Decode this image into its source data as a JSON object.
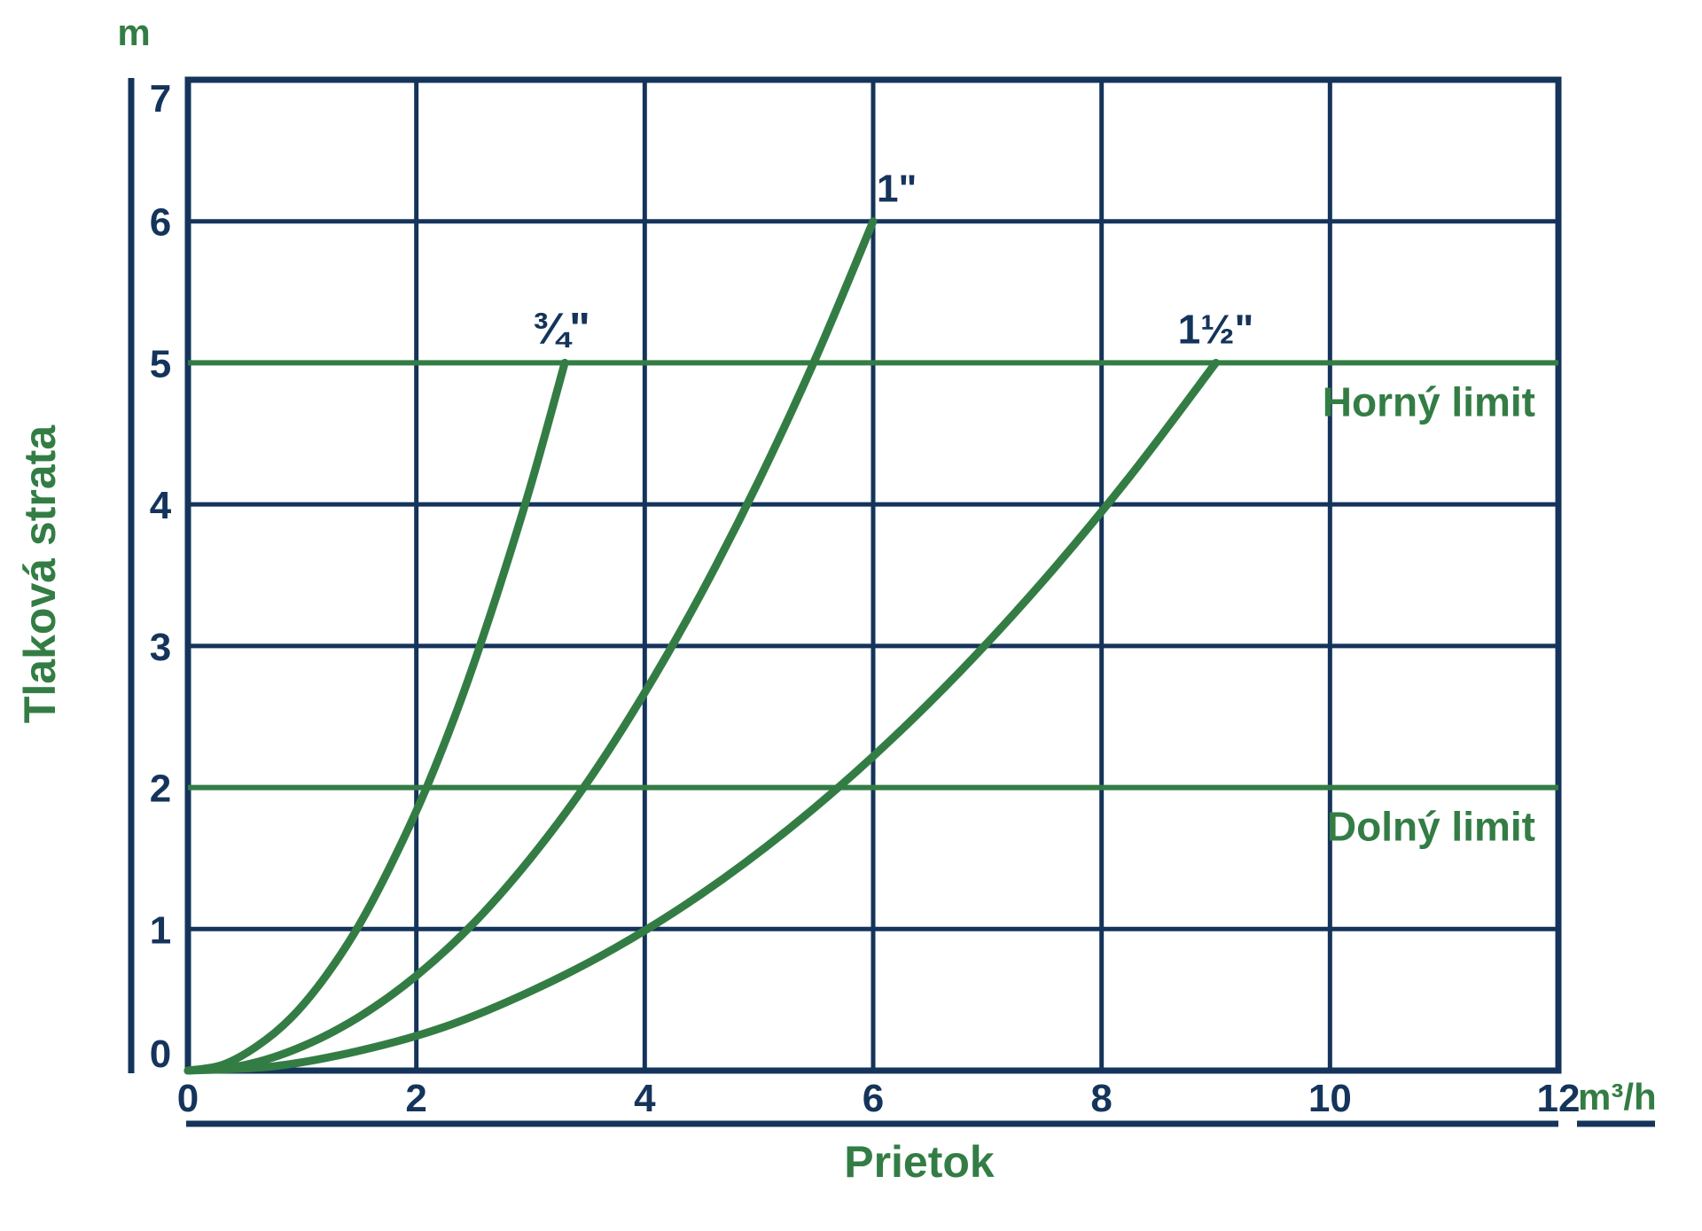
{
  "page": {
    "background": "#ffffff"
  },
  "chart_data": {
    "type": "line",
    "title": "",
    "xlabel": "Prietok",
    "x_unit": "m³/h",
    "ylabel": "Tlaková strata",
    "y_unit": "m",
    "xlim": [
      0,
      12
    ],
    "ylim": [
      0,
      7
    ],
    "x_ticks": [
      0,
      2,
      4,
      6,
      8,
      10,
      12
    ],
    "y_ticks": [
      0,
      1,
      2,
      3,
      4,
      5,
      6,
      7
    ],
    "grid": true,
    "legend_position": "inline-curve-labels",
    "series": [
      {
        "name": "¾\"",
        "x": [
          0,
          0.3,
          0.6,
          0.9,
          1.2,
          1.5,
          1.8,
          2.1,
          2.4,
          2.7,
          3.0,
          3.3
        ],
        "y": [
          0,
          0.04,
          0.17,
          0.37,
          0.66,
          1.03,
          1.49,
          2.02,
          2.64,
          3.35,
          4.13,
          5.0
        ]
      },
      {
        "name": "1\"",
        "x": [
          0,
          0.5,
          1,
          1.5,
          2,
          2.5,
          3,
          3.5,
          4,
          4.5,
          5,
          5.5,
          6
        ],
        "y": [
          0,
          0.04,
          0.17,
          0.38,
          0.67,
          1.04,
          1.5,
          2.04,
          2.67,
          3.38,
          4.17,
          5.04,
          6.0
        ]
      },
      {
        "name": "1½\"",
        "x": [
          0,
          0.75,
          1.5,
          2.25,
          3,
          3.75,
          4.5,
          5.25,
          6,
          6.75,
          7.5,
          8.25,
          9
        ],
        "y": [
          0,
          0.03,
          0.14,
          0.31,
          0.56,
          0.87,
          1.25,
          1.7,
          2.22,
          2.81,
          3.47,
          4.2,
          5.0
        ]
      }
    ],
    "limit_lines": [
      {
        "label": "Horný limit",
        "y": 5
      },
      {
        "label": "Dolný limit",
        "y": 2
      }
    ],
    "colors": {
      "navy": "#15345b",
      "green": "#337d45"
    }
  }
}
